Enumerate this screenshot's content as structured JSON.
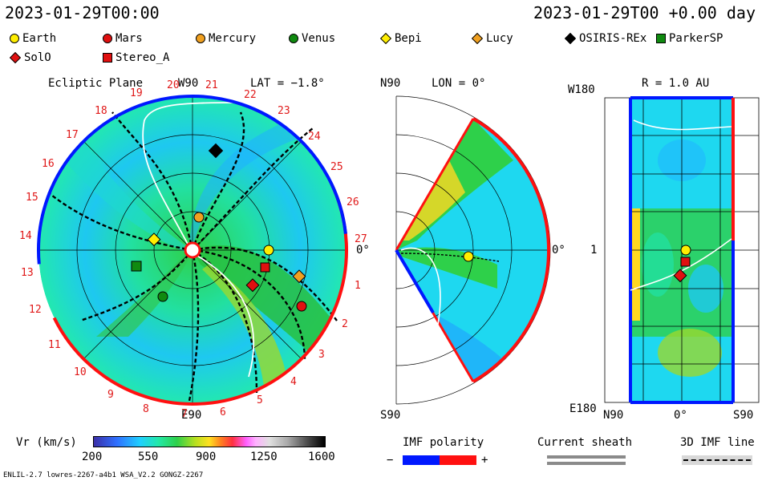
{
  "header": {
    "title_left": "2023-01-29T00:00",
    "title_right": "2023-01-29T00 +0.00 day"
  },
  "legend": [
    {
      "label": "Earth",
      "shape": "circle",
      "color": "#ffee00"
    },
    {
      "label": "Mars",
      "shape": "circle",
      "color": "#e01010"
    },
    {
      "label": "Mercury",
      "shape": "circle",
      "color": "#f0a020"
    },
    {
      "label": "Venus",
      "shape": "circle",
      "color": "#108a10"
    },
    {
      "label": "Bepi",
      "shape": "diamond",
      "color": "#ffee00"
    },
    {
      "label": "Lucy",
      "shape": "diamond",
      "color": "#f0a020"
    },
    {
      "label": "OSIRIS-REx",
      "shape": "diamond",
      "color": "#000000"
    },
    {
      "label": "ParkerSP",
      "shape": "square",
      "color": "#108a10"
    },
    {
      "label": "SolO",
      "shape": "diamond",
      "color": "#e01010"
    },
    {
      "label": "Stereo_A",
      "shape": "square",
      "color": "#e01010"
    }
  ],
  "ecliptic": {
    "title": "Ecliptic Plane",
    "top_label": "W90",
    "bottom_label": "E90",
    "right_label": "0°",
    "lat_label": "LAT = −1.8°",
    "sector_numbers": [
      "1",
      "2",
      "3",
      "4",
      "5",
      "6",
      "7",
      "8",
      "9",
      "10",
      "11",
      "12",
      "13",
      "14",
      "15",
      "16",
      "17",
      "18",
      "19",
      "20",
      "21",
      "22",
      "23",
      "24",
      "25",
      "26",
      "27"
    ]
  },
  "meridional": {
    "top_label": "N90",
    "bottom_label": "S90",
    "right_label": "0°",
    "lon_label": "LON = 0°"
  },
  "sphere": {
    "title": "R = 1.0 AU",
    "top_left": "W180",
    "bottom_left": "E180",
    "mid_left": "1",
    "bottom_n": "N90",
    "bottom_mid": "0°",
    "bottom_s": "S90"
  },
  "colorbar": {
    "label": "Vr (km/s)",
    "ticks": [
      "200",
      "550",
      "900",
      "1250",
      "1600"
    ]
  },
  "imf_polarity": {
    "label": "IMF polarity",
    "minus": "−",
    "plus": "+",
    "negative_color": "#0018ff",
    "positive_color": "#ff1010"
  },
  "current_sheath": {
    "label": "Current sheath"
  },
  "imf_line": {
    "label": "3D IMF line"
  },
  "footer": {
    "text": "ENLIL-2.7 lowres-2267-a4b1 WSA_V2.2 GONGZ-2267"
  }
}
